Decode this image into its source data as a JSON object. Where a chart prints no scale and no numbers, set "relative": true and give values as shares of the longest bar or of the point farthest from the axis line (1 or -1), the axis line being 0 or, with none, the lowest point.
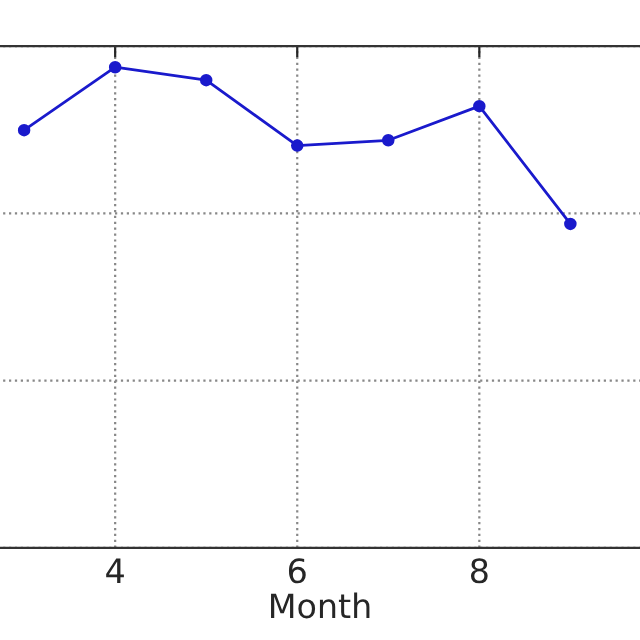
{
  "chart_data": {
    "type": "line",
    "xlabel": "Month",
    "relative": true,
    "x": [
      3,
      4,
      5,
      6,
      7,
      8,
      9
    ],
    "series": [
      {
        "color": "#1a1acc",
        "values": [
          0.869,
          1,
          0.973,
          0.837,
          0.848,
          0.919,
          0.674
        ]
      }
    ],
    "xlim": [
      2.7,
      9.8
    ],
    "xticks": [
      4,
      6,
      8
    ],
    "grid": true,
    "marker": "circle",
    "line_style": "solid"
  }
}
